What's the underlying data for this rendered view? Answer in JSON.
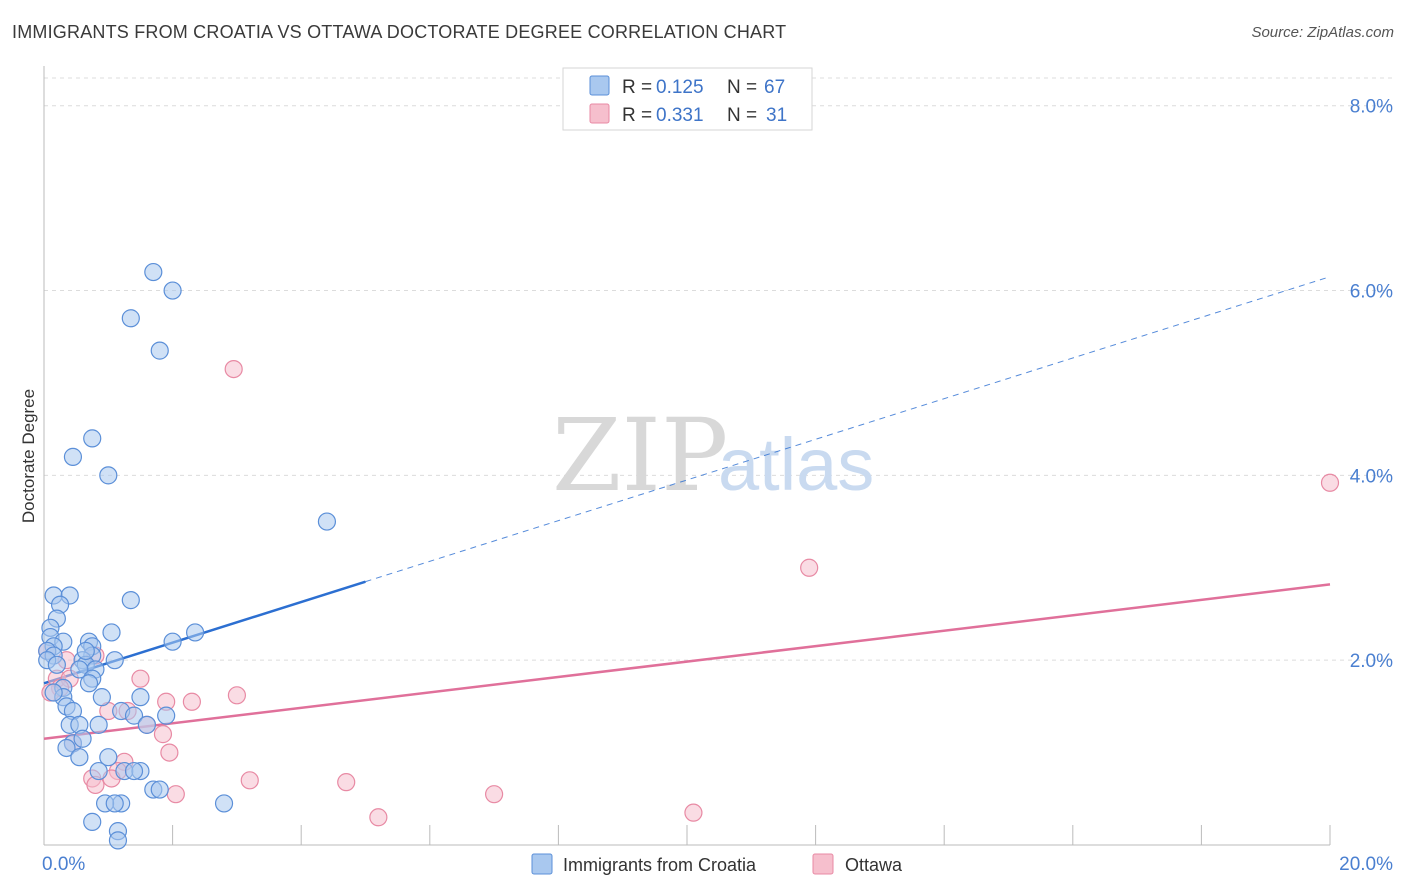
{
  "title": "IMMIGRANTS FROM CROATIA VS OTTAWA DOCTORATE DEGREE CORRELATION CHART",
  "source": "Source: ZipAtlas.com",
  "watermark": {
    "zip": "ZIP",
    "atlas": "atlas"
  },
  "legend": {
    "rows": [
      {
        "r_label": "R = ",
        "r_value": "0.125",
        "n_label": "N = ",
        "n_value": "67"
      },
      {
        "r_label": "R = ",
        "r_value": "0.331",
        "n_label": "N = ",
        "n_value": "31"
      }
    ]
  },
  "colors": {
    "croatia_fill": "#a9c8ef",
    "croatia_stroke": "#5b8fd8",
    "croatia_line": "#2c6fd1",
    "ottawa_fill": "#f6bfcd",
    "ottawa_stroke": "#e88aa4",
    "ottawa_line": "#e0709a",
    "tick": "#4a7fd0",
    "grid": "#dcdcdc"
  },
  "chart_data": {
    "type": "scatter",
    "title": "IMMIGRANTS FROM CROATIA VS OTTAWA DOCTORATE DEGREE CORRELATION CHART",
    "xlabel": "",
    "ylabel": "Doctorate Degree",
    "xlim": [
      0,
      20
    ],
    "ylim": [
      0,
      8.3
    ],
    "x_tick_labels": [
      {
        "value": 0,
        "label": "0.0%"
      },
      {
        "value": 20,
        "label": "20.0%"
      }
    ],
    "y_tick_labels": [
      {
        "value": 2,
        "label": "2.0%"
      },
      {
        "value": 4,
        "label": "4.0%"
      },
      {
        "value": 6,
        "label": "6.0%"
      },
      {
        "value": 8,
        "label": "8.0%"
      }
    ],
    "series": [
      {
        "name": "Immigrants from Croatia",
        "R": 0.125,
        "N": 67,
        "trend": {
          "x0": 0,
          "y0": 1.75,
          "x1": 5.0,
          "y1": 2.85,
          "extend_to_x": 20,
          "extend_y": 6.15
        },
        "points": [
          [
            1.7,
            6.2
          ],
          [
            2.0,
            6.0
          ],
          [
            1.35,
            5.7
          ],
          [
            1.8,
            5.35
          ],
          [
            0.75,
            4.4
          ],
          [
            0.45,
            4.2
          ],
          [
            1.0,
            4.0
          ],
          [
            4.4,
            3.5
          ],
          [
            0.15,
            2.7
          ],
          [
            0.4,
            2.7
          ],
          [
            1.35,
            2.65
          ],
          [
            0.25,
            2.6
          ],
          [
            0.2,
            2.45
          ],
          [
            0.1,
            2.35
          ],
          [
            1.05,
            2.3
          ],
          [
            2.35,
            2.3
          ],
          [
            0.1,
            2.25
          ],
          [
            0.3,
            2.2
          ],
          [
            0.7,
            2.2
          ],
          [
            2.0,
            2.2
          ],
          [
            0.15,
            2.15
          ],
          [
            0.75,
            2.15
          ],
          [
            0.05,
            2.1
          ],
          [
            0.15,
            2.05
          ],
          [
            0.75,
            2.05
          ],
          [
            1.1,
            2.0
          ],
          [
            0.05,
            2.0
          ],
          [
            0.6,
            2.0
          ],
          [
            0.65,
            1.95
          ],
          [
            0.2,
            1.95
          ],
          [
            0.8,
            1.9
          ],
          [
            0.55,
            1.9
          ],
          [
            0.75,
            1.8
          ],
          [
            0.7,
            1.75
          ],
          [
            0.3,
            1.7
          ],
          [
            0.3,
            1.6
          ],
          [
            0.9,
            1.6
          ],
          [
            1.5,
            1.6
          ],
          [
            0.35,
            1.5
          ],
          [
            1.2,
            1.45
          ],
          [
            0.45,
            1.45
          ],
          [
            1.4,
            1.4
          ],
          [
            1.9,
            1.4
          ],
          [
            0.4,
            1.3
          ],
          [
            0.85,
            1.3
          ],
          [
            0.55,
            1.3
          ],
          [
            1.6,
            1.3
          ],
          [
            0.45,
            1.1
          ],
          [
            0.35,
            1.05
          ],
          [
            0.55,
            0.95
          ],
          [
            1.0,
            0.95
          ],
          [
            1.25,
            0.8
          ],
          [
            1.5,
            0.8
          ],
          [
            0.85,
            0.8
          ],
          [
            1.4,
            0.8
          ],
          [
            1.7,
            0.6
          ],
          [
            1.8,
            0.6
          ],
          [
            1.2,
            0.45
          ],
          [
            0.95,
            0.45
          ],
          [
            1.1,
            0.45
          ],
          [
            2.8,
            0.45
          ],
          [
            0.75,
            0.25
          ],
          [
            1.15,
            0.15
          ],
          [
            1.15,
            0.05
          ],
          [
            0.6,
            1.15
          ],
          [
            0.15,
            1.65
          ],
          [
            0.65,
            2.1
          ]
        ]
      },
      {
        "name": "Ottawa",
        "R": 0.331,
        "N": 31,
        "trend": {
          "x0": 0,
          "y0": 1.15,
          "x1": 20,
          "y1": 2.82
        },
        "points": [
          [
            2.95,
            5.15
          ],
          [
            20.0,
            3.92
          ],
          [
            11.9,
            3.0
          ],
          [
            0.05,
            2.1
          ],
          [
            0.35,
            2.0
          ],
          [
            0.8,
            2.05
          ],
          [
            0.2,
            1.8
          ],
          [
            0.4,
            1.8
          ],
          [
            1.5,
            1.8
          ],
          [
            0.25,
            1.7
          ],
          [
            0.1,
            1.65
          ],
          [
            3.0,
            1.62
          ],
          [
            1.9,
            1.55
          ],
          [
            2.3,
            1.55
          ],
          [
            1.3,
            1.45
          ],
          [
            1.0,
            1.45
          ],
          [
            1.6,
            1.3
          ],
          [
            1.85,
            1.2
          ],
          [
            0.45,
            1.1
          ],
          [
            1.95,
            1.0
          ],
          [
            1.25,
            0.9
          ],
          [
            1.15,
            0.8
          ],
          [
            0.75,
            0.72
          ],
          [
            1.05,
            0.72
          ],
          [
            3.2,
            0.7
          ],
          [
            4.7,
            0.68
          ],
          [
            0.8,
            0.65
          ],
          [
            2.05,
            0.55
          ],
          [
            7.0,
            0.55
          ],
          [
            10.1,
            0.35
          ],
          [
            5.2,
            0.3
          ]
        ]
      }
    ],
    "legend_position": "top-center",
    "grid": true
  }
}
